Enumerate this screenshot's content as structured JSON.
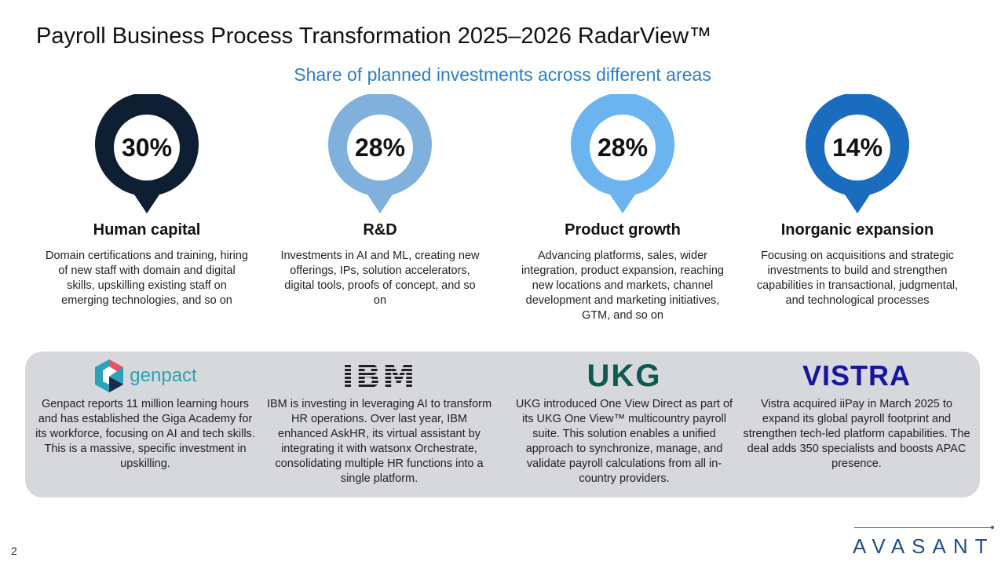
{
  "title": "Payroll Business Process Transformation 2025–2026 RadarView™",
  "subtitle": "Share of planned investments across different areas",
  "areas": [
    {
      "pct": "30%",
      "value": 30,
      "color": "#0e1e33",
      "heading": "Human capital",
      "desc": "Domain certifications and training, hiring of new staff with domain and digital skills, upskilling existing staff on emerging technologies, and so on"
    },
    {
      "pct": "28%",
      "value": 28,
      "color": "#80b1dc",
      "heading": "R&D",
      "desc": "Investments in AI and ML, creating new offerings, IPs, solution accelerators, digital tools, proofs of concept, and so on"
    },
    {
      "pct": "28%",
      "value": 28,
      "color": "#6cb4f0",
      "heading": "Product growth",
      "desc": "Advancing platforms, sales, wider integration, product expansion, reaching new locations and markets, channel development and marketing initiatives, GTM, and so on"
    },
    {
      "pct": "14%",
      "value": 14,
      "color": "#1a6cbf",
      "heading": "Inorganic expansion",
      "desc": "Focusing on acquisitions and strategic investments to build and strengthen capabilities in transactional, judgmental, and technological processes"
    }
  ],
  "examples": [
    {
      "logo": "genpact",
      "text": "Genpact reports 11 million learning hours and has established the Giga Academy for its workforce, focusing on AI and tech skills. This is a massive, specific investment in upskilling."
    },
    {
      "logo": "IBM",
      "text": "IBM is investing in leveraging AI to transform HR operations. Over last year, IBM enhanced AskHR, its virtual assistant by integrating it with watsonx Orchestrate, consolidating multiple HR functions into a single platform."
    },
    {
      "logo": "UKG",
      "text": "UKG introduced One View Direct as part of its UKG One View™ multicountry payroll suite. This solution enables a unified approach to synchronize, manage, and validate payroll calculations from all in-country providers."
    },
    {
      "logo": "VISTRA",
      "text": "Vistra acquired iiPay in March 2025 to expand its global payroll footprint and strengthen tech-led platform capabilities. The deal adds 350 specialists and boosts APAC presence."
    }
  ],
  "page_number": "2",
  "brand": "AVASANT"
}
